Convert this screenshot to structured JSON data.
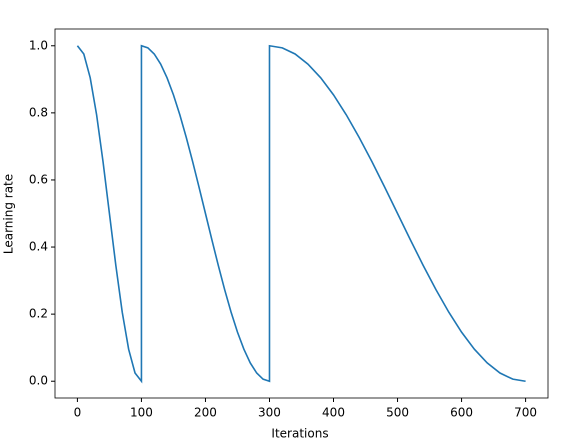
{
  "chart_data": {
    "type": "line",
    "xlabel": "Iterations",
    "ylabel": "Learning rate",
    "x": [
      0,
      10,
      20,
      30,
      40,
      50,
      60,
      70,
      80,
      90,
      100,
      100,
      110,
      120,
      130,
      140,
      150,
      160,
      170,
      180,
      190,
      200,
      210,
      220,
      230,
      240,
      250,
      260,
      270,
      280,
      290,
      300,
      300,
      320,
      340,
      360,
      380,
      400,
      420,
      440,
      460,
      480,
      500,
      520,
      540,
      560,
      580,
      600,
      620,
      640,
      660,
      680,
      700
    ],
    "values": [
      1.0,
      0.9755,
      0.9045,
      0.7939,
      0.6545,
      0.5,
      0.3455,
      0.2061,
      0.0955,
      0.0245,
      0,
      1.0,
      0.9938,
      0.9755,
      0.9455,
      0.9045,
      0.8536,
      0.7939,
      0.727,
      0.6545,
      0.5782,
      0.5,
      0.4218,
      0.3455,
      0.273,
      0.2061,
      0.1464,
      0.0955,
      0.0545,
      0.0245,
      0.0062,
      0,
      1.0,
      0.9938,
      0.9755,
      0.9455,
      0.9045,
      0.8536,
      0.7939,
      0.727,
      0.6545,
      0.5782,
      0.5,
      0.4218,
      0.3455,
      0.273,
      0.2061,
      0.1464,
      0.0955,
      0.0545,
      0.0245,
      0.0062,
      0
    ],
    "color": "#1f77b4",
    "xlim": [
      -35,
      735
    ],
    "xticks": [
      0,
      100,
      200,
      300,
      400,
      500,
      600,
      700
    ],
    "ylim": [
      -0.05,
      1.05
    ],
    "yticks": [
      {
        "value": 0,
        "label": "0.0"
      },
      0.2,
      0.4,
      0.6,
      0.8,
      {
        "value": 1,
        "label": "1.0"
      }
    ],
    "grid": false
  }
}
